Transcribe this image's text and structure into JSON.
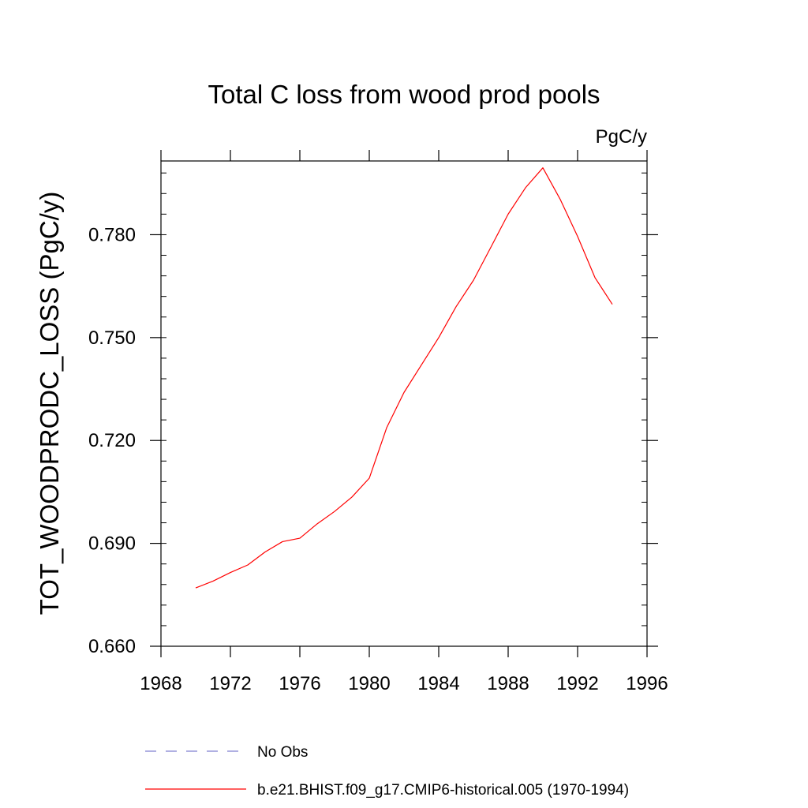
{
  "chart_data": {
    "type": "line",
    "title": "Total C loss from wood prod pools",
    "units_label": "PgC/y",
    "xlabel": "",
    "ylabel": "TOT_WOODPRODC_LOSS  (PgC/y)",
    "xlim": [
      1968,
      1996
    ],
    "ylim": [
      0.66,
      0.8015
    ],
    "x_ticks": [
      1968,
      1972,
      1976,
      1980,
      1984,
      1988,
      1992,
      1996
    ],
    "x_tick_labels": [
      "1968",
      "1972",
      "1976",
      "1980",
      "1984",
      "1988",
      "1992",
      "1996"
    ],
    "y_ticks": [
      0.66,
      0.69,
      0.72,
      0.75,
      0.78
    ],
    "y_tick_labels": [
      "0.660",
      "0.690",
      "0.720",
      "0.750",
      "0.780"
    ],
    "grid": false,
    "legend_position": "bottom",
    "series": [
      {
        "name": "b.e21.BHIST.f09_g17.CMIP6-historical.005 (1970-1994)",
        "color": "#ff0000",
        "style": "solid",
        "x": [
          1970,
          1971,
          1972,
          1973,
          1974,
          1975,
          1976,
          1977,
          1978,
          1979,
          1980,
          1981,
          1982,
          1983,
          1984,
          1985,
          1986,
          1987,
          1988,
          1989,
          1990,
          1991,
          1992,
          1993,
          1994
        ],
        "y": [
          0.677,
          0.679,
          0.6815,
          0.6837,
          0.6875,
          0.6905,
          0.6915,
          0.6957,
          0.6993,
          0.7035,
          0.709,
          0.7237,
          0.734,
          0.742,
          0.75,
          0.759,
          0.7667,
          0.7763,
          0.786,
          0.7937,
          0.7995,
          0.7903,
          0.7795,
          0.7675,
          0.7597
        ]
      },
      {
        "name": "No Obs",
        "color": "#8080d0",
        "style": "dashed",
        "x": [],
        "y": []
      }
    ]
  }
}
